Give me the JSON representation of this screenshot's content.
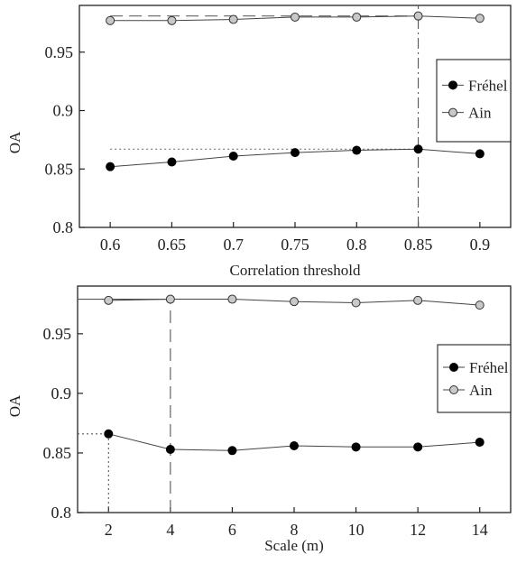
{
  "chart_data": [
    {
      "type": "line",
      "title": "",
      "xlabel": "Correlation threshold",
      "ylabel": "OA",
      "x": [
        0.6,
        0.65,
        0.7,
        0.75,
        0.8,
        0.85,
        0.9
      ],
      "x_tick_labels": [
        "0.6",
        "0.65",
        "0.7",
        "0.75",
        "0.8",
        "0.85",
        "0.9"
      ],
      "y_ticks": [
        0.8,
        0.85,
        0.9,
        0.95
      ],
      "y_tick_labels": [
        "0.8",
        "0.85",
        "0.9",
        "0.95"
      ],
      "xlim": [
        0.575,
        0.925
      ],
      "ylim": [
        0.8,
        0.99
      ],
      "grid": false,
      "legend_position": "right",
      "series": [
        {
          "name": "Fréhel",
          "marker": "filled-circle",
          "color": "#000000",
          "values": [
            0.852,
            0.856,
            0.861,
            0.864,
            0.866,
            0.867,
            0.863
          ]
        },
        {
          "name": "Ain",
          "marker": "open-circle",
          "color": "#c8c8c8",
          "values": [
            0.977,
            0.977,
            0.978,
            0.98,
            0.98,
            0.981,
            0.979
          ]
        }
      ],
      "reference_lines": [
        {
          "style": "dashed",
          "value": 0.981,
          "x_from": 0.6,
          "x_to": 0.85,
          "color": "#666666"
        },
        {
          "style": "dotted",
          "value": 0.867,
          "x_from": 0.6,
          "x_to": 0.85,
          "color": "#666666"
        },
        {
          "style": "dash-dot-vertical",
          "x": 0.85,
          "color": "#555555"
        }
      ]
    },
    {
      "type": "line",
      "title": "",
      "xlabel": "Scale (m)",
      "ylabel": "OA",
      "x": [
        2,
        4,
        6,
        8,
        10,
        12,
        14
      ],
      "x_tick_labels": [
        "2",
        "4",
        "6",
        "8",
        "10",
        "12",
        "14"
      ],
      "y_ticks": [
        0.8,
        0.85,
        0.9,
        0.95
      ],
      "y_tick_labels": [
        "0.8",
        "0.85",
        "0.9",
        "0.95"
      ],
      "xlim": [
        1,
        15
      ],
      "ylim": [
        0.8,
        0.99
      ],
      "grid": false,
      "legend_position": "right",
      "series": [
        {
          "name": "Fréhel",
          "marker": "filled-circle",
          "color": "#000000",
          "values": [
            0.866,
            0.853,
            0.852,
            0.856,
            0.855,
            0.855,
            0.859
          ]
        },
        {
          "name": "Ain",
          "marker": "open-circle",
          "color": "#c8c8c8",
          "values": [
            0.978,
            0.979,
            0.979,
            0.977,
            0.976,
            0.978,
            0.974
          ]
        }
      ],
      "reference_lines": [
        {
          "style": "dashed-vertical",
          "x": 4,
          "y_from": 0.8,
          "y_to": 0.979,
          "color": "#555555"
        },
        {
          "style": "solid-horizontal",
          "value": 0.979,
          "x_from": 1,
          "x_to": 4,
          "color": "#555555"
        },
        {
          "style": "dotted-vertical",
          "x": 2,
          "y_from": 0.8,
          "y_to": 0.866,
          "color": "#555555"
        },
        {
          "style": "dotted-horizontal",
          "value": 0.866,
          "x_from": 1,
          "x_to": 2,
          "color": "#555555"
        }
      ]
    }
  ]
}
